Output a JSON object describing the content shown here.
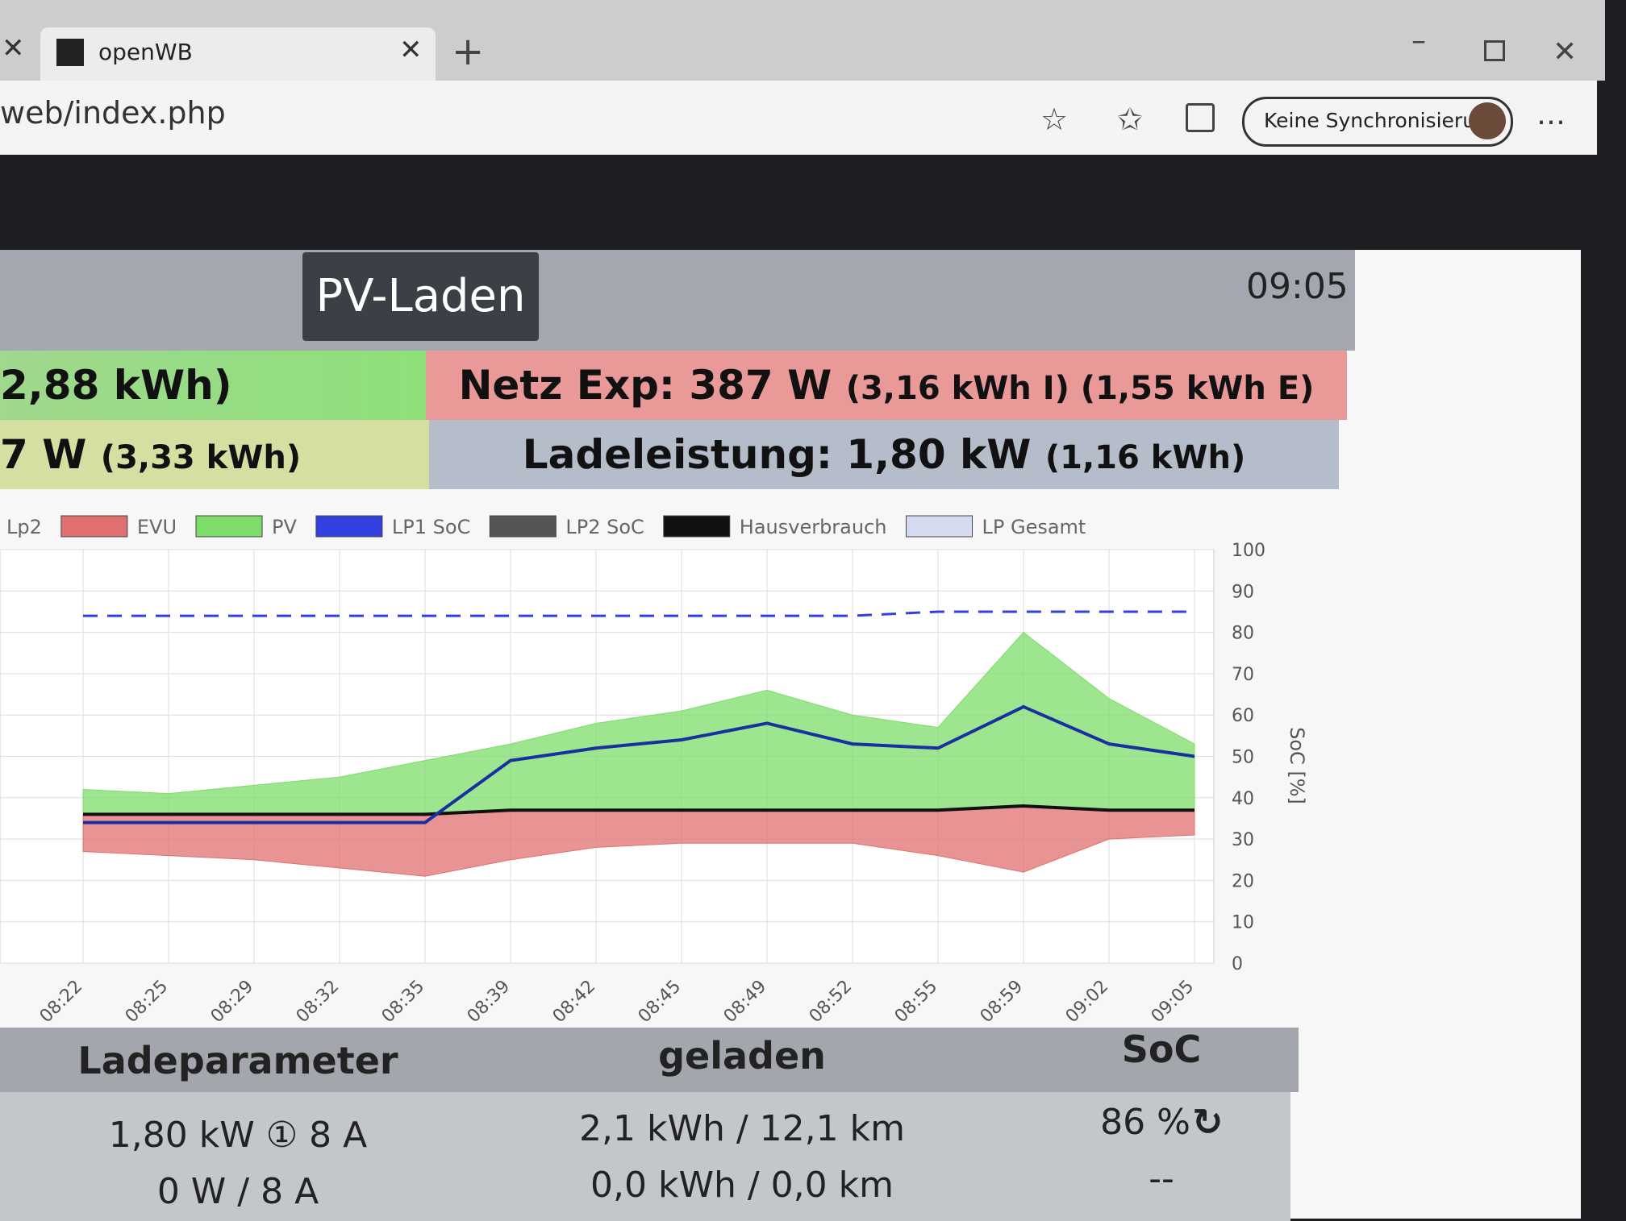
{
  "browser": {
    "tab_title": "openWB",
    "url": "web/index.php",
    "sync": "Keine Synchronisierung"
  },
  "header": {
    "mode": "PV-Laden",
    "time": "09:05"
  },
  "status": {
    "pv_left": "2,88 kWh)",
    "grid_main": "Netz Exp: 387 W",
    "grid_detail": "(3,16 kWh I) (1,55 kWh E)",
    "house_main": "7 W",
    "house_detail": "(3,33 kWh)",
    "charge_main": "Ladeleistung: 1,80 kW",
    "charge_detail": "(1,16 kWh)"
  },
  "chart_data": {
    "type": "line",
    "categories": [
      "08:22",
      "08:25",
      "08:29",
      "08:32",
      "08:35",
      "08:39",
      "08:42",
      "08:45",
      "08:49",
      "08:52",
      "08:55",
      "08:59",
      "09:02",
      "09:05"
    ],
    "y2label": "SoC [%]",
    "y2lim": [
      0,
      100
    ],
    "y2ticks": [
      0,
      10,
      20,
      30,
      40,
      50,
      60,
      70,
      80,
      90,
      100
    ],
    "grid": true,
    "series": [
      {
        "name": "Lp2"
      },
      {
        "name": "EVU",
        "color": "#e07070",
        "style": "area",
        "values": [
          27,
          26,
          25,
          23,
          21,
          25,
          28,
          29,
          29,
          29,
          26,
          22,
          30,
          31
        ]
      },
      {
        "name": "PV",
        "color": "#7ddc6a",
        "style": "area",
        "values": [
          42,
          41,
          43,
          45,
          49,
          53,
          58,
          61,
          66,
          60,
          57,
          80,
          64,
          53
        ]
      },
      {
        "name": "LP1 SoC",
        "color": "#3340e0",
        "style": "dashed",
        "values": [
          84,
          84,
          84,
          84,
          84,
          84,
          84,
          84,
          84,
          84,
          85,
          85,
          85,
          85
        ]
      },
      {
        "name": "LP2 SoC",
        "color": "#555555"
      },
      {
        "name": "Hausverbrauch",
        "color": "#111111",
        "style": "line",
        "values": [
          36,
          36,
          36,
          36,
          36,
          37,
          37,
          37,
          37,
          37,
          37,
          38,
          37,
          37
        ]
      },
      {
        "name": "LP Gesamt",
        "color": "#d6daf0"
      },
      {
        "color": "#1a2fa0",
        "style": "line",
        "values": [
          34,
          34,
          34,
          34,
          34,
          49,
          52,
          54,
          58,
          53,
          52,
          62,
          53,
          50
        ]
      }
    ]
  },
  "table": {
    "header": [
      "Ladeparameter",
      "geladen",
      "SoC"
    ],
    "rows": [
      [
        "1,80 kW ① 8 A",
        "2,1 kWh / 12,1 km",
        "86 %"
      ],
      [
        "0 W / 8 A",
        "0,0 kWh / 0,0 km",
        "--"
      ]
    ]
  }
}
